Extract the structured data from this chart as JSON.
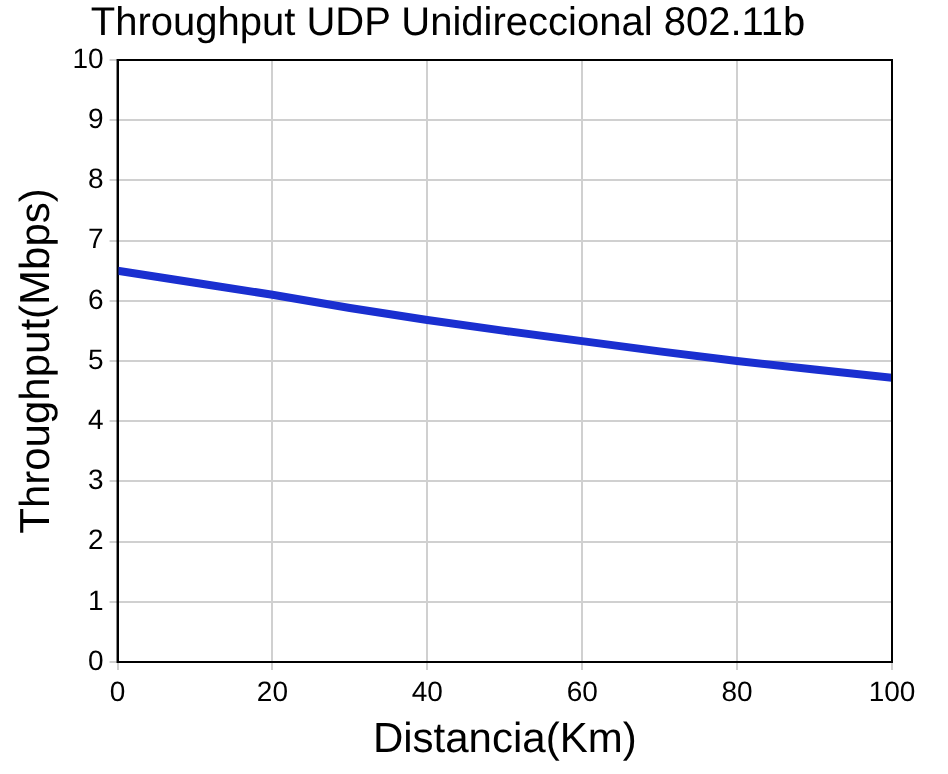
{
  "chart_data": {
    "type": "line",
    "title": "Throughput UDP Unidireccional 802.11b",
    "xlabel": "Distancia(Km)",
    "ylabel": "Throughput(Mbps)",
    "x": [
      0,
      10,
      20,
      30,
      40,
      50,
      60,
      70,
      80,
      90,
      100
    ],
    "series": [
      {
        "color": "#1a2fd0",
        "values": [
          6.5,
          6.3,
          6.1,
          5.88,
          5.68,
          5.5,
          5.33,
          5.16,
          5.0,
          4.86,
          4.72
        ]
      }
    ],
    "xlim": [
      0,
      100
    ],
    "xticks": [
      0,
      20,
      40,
      60,
      80,
      100
    ],
    "ylim": [
      0,
      10
    ],
    "yticks": [
      0,
      1,
      2,
      3,
      4,
      5,
      6,
      7,
      8,
      9,
      10
    ],
    "grid": true,
    "legend": false,
    "marker": "none",
    "line_style": "solid"
  }
}
